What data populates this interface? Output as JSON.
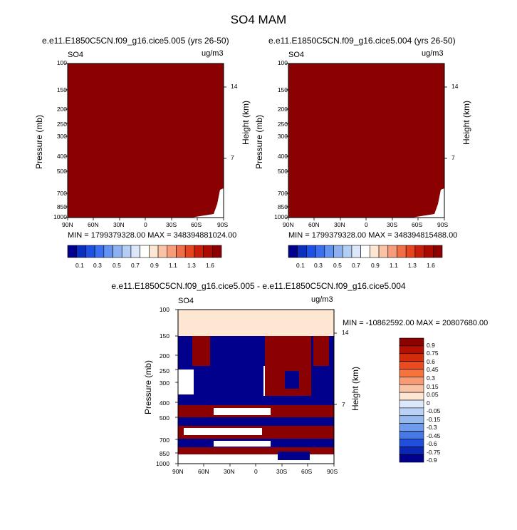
{
  "page_title": "SO4 MAM",
  "chart_data": [
    {
      "type": "heatmap",
      "title": "e.e11.E1850C5CN.f09_g16.cice5.005 (yrs 26-50)",
      "left_label": "SO4",
      "units": "ug/m3",
      "ylabel": "Pressure (mb)",
      "ylabel_right": "Height (km)",
      "x_ticks": [
        "90N",
        "60N",
        "30N",
        "0",
        "30S",
        "60S",
        "90S"
      ],
      "y_ticks": [
        "100",
        "150",
        "200",
        "250",
        "300",
        "400",
        "500",
        "700",
        "850",
        "1000"
      ],
      "right_ticks": [
        "14",
        "7"
      ],
      "min_max": "MIN = 1799379328.00   MAX = 348394881024.00",
      "field_min": 1799379328.0,
      "field_max": 348394881024.0,
      "fill_note": "field exceeds top of color scale nearly everywhere"
    },
    {
      "type": "heatmap",
      "title": "e.e11.E1850C5CN.f09_g16.cice5.004 (yrs 26-50)",
      "left_label": "SO4",
      "units": "ug/m3",
      "ylabel": "Pressure (mb)",
      "ylabel_right": "Height (km)",
      "x_ticks": [
        "90N",
        "60N",
        "30N",
        "0",
        "30S",
        "60S",
        "90S"
      ],
      "y_ticks": [
        "100",
        "150",
        "200",
        "250",
        "300",
        "400",
        "500",
        "700",
        "850",
        "1000"
      ],
      "right_ticks": [
        "14",
        "7"
      ],
      "min_max": "MIN = 1799379328.00   MAX = 348394815488.00",
      "field_min": 1799379328.0,
      "field_max": 348394815488.0
    },
    {
      "type": "heatmap",
      "title": "e.e11.E1850C5CN.f09_g16.cice5.005 - e.e11.E1850C5CN.f09_g16.cice5.004",
      "left_label": "SO4",
      "units": "ug/m3",
      "ylabel": "Pressure (mb)",
      "ylabel_right": "Height (km)",
      "x_ticks": [
        "90N",
        "60N",
        "30N",
        "0",
        "30S",
        "60S",
        "90S"
      ],
      "y_ticks": [
        "100",
        "150",
        "200",
        "250",
        "300",
        "400",
        "500",
        "700",
        "850",
        "1000"
      ],
      "right_ticks": [
        "14",
        "7"
      ],
      "min_max": "MIN = -10862592.00   MAX = 20807680.00",
      "field_min": -10862592.0,
      "field_max": 20807680.0
    }
  ],
  "colorbar_top": {
    "labels": [
      "0.1",
      "0.3",
      "0.5",
      "0.7",
      "0.9",
      "1.1",
      "1.3",
      "1.6"
    ],
    "colors": [
      "#00008c",
      "#0a2fbf",
      "#1e50e6",
      "#3c6ef0",
      "#6492f0",
      "#8cb0f0",
      "#b4cdf5",
      "#dce8fa",
      "#ffffff",
      "#fde6d2",
      "#fbc3a5",
      "#f89b78",
      "#f06e46",
      "#e6461e",
      "#c81e0a",
      "#aa0a00",
      "#8c0000"
    ]
  },
  "colorbar_diff": {
    "labels": [
      "0.9",
      "0.75",
      "0.6",
      "0.45",
      "0.3",
      "0.15",
      "0.05",
      "0",
      "-0.05",
      "-0.15",
      "-0.3",
      "-0.45",
      "-0.6",
      "-0.75",
      "-0.9"
    ],
    "colors": [
      "#8c0000",
      "#b40f00",
      "#d22d0a",
      "#eb4b1e",
      "#f5733c",
      "#f89b73",
      "#fbc3a5",
      "#fde6d2",
      "#dce8fa",
      "#b9d2f5",
      "#96b9f0",
      "#6e9bec",
      "#4678e6",
      "#1e50dc",
      "#0a28b4",
      "#00008c"
    ]
  },
  "colors": {
    "dark_red": "#8b0000",
    "peach": "#fde6d2",
    "navy": "#00008c",
    "white": "#ffffff"
  }
}
